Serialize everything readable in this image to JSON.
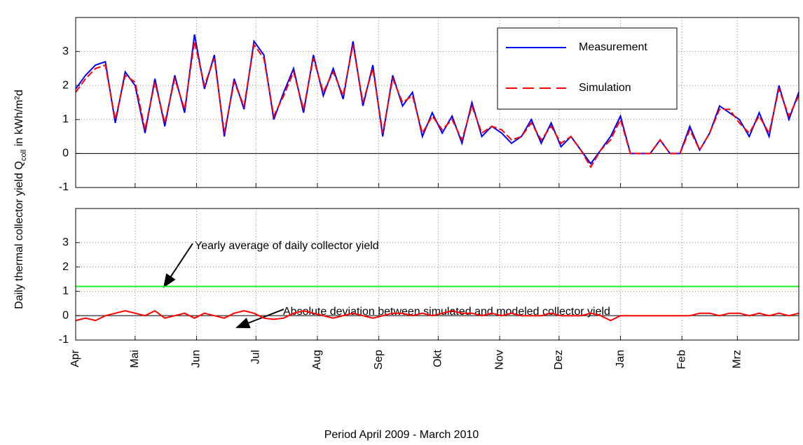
{
  "chart_data": [
    {
      "type": "line",
      "ylabel": "Daily thermal collector yield Q",
      "ylabel_sub": "coll",
      "ylabel_unit": " in kWh/m²d",
      "x": [
        0,
        5,
        10,
        15,
        20,
        25,
        30,
        35,
        40,
        45,
        50,
        55,
        60,
        65,
        70,
        75,
        80,
        85,
        90,
        95,
        100,
        105,
        110,
        115,
        120,
        125,
        130,
        135,
        140,
        145,
        150,
        155,
        160,
        165,
        170,
        175,
        180,
        185,
        190,
        195,
        200,
        205,
        210,
        215,
        220,
        225,
        230,
        235,
        240,
        245,
        250,
        255,
        260,
        265,
        270,
        275,
        280,
        285,
        290,
        295,
        300,
        305,
        310,
        315,
        320,
        325,
        330,
        335,
        340,
        345,
        350,
        355,
        360,
        365
      ],
      "series": [
        {
          "name": "Measurement",
          "color": "#0000ff",
          "values": [
            1.9,
            2.3,
            2.6,
            2.7,
            0.9,
            2.4,
            2.0,
            0.6,
            2.2,
            0.8,
            2.3,
            1.2,
            3.5,
            1.9,
            2.9,
            0.5,
            2.2,
            1.3,
            3.3,
            2.9,
            1.0,
            1.8,
            2.5,
            1.2,
            2.9,
            1.7,
            2.5,
            1.6,
            3.3,
            1.4,
            2.6,
            0.5,
            2.3,
            1.4,
            1.8,
            0.5,
            1.2,
            0.6,
            1.1,
            0.3,
            1.5,
            0.5,
            0.8,
            0.6,
            0.3,
            0.5,
            1.0,
            0.3,
            0.9,
            0.2,
            0.5,
            0.1,
            -0.3,
            0.1,
            0.5,
            1.1,
            0.0,
            0.0,
            0.0,
            0.4,
            0.0,
            0.0,
            0.8,
            0.1,
            0.6,
            1.4,
            1.2,
            1.0,
            0.5,
            1.2,
            0.5,
            2.0,
            1.0,
            1.8
          ]
        },
        {
          "name": "Simulation",
          "color": "#ff0000",
          "dashed": true,
          "values": [
            1.8,
            2.2,
            2.5,
            2.6,
            1.0,
            2.3,
            2.1,
            0.7,
            2.1,
            0.9,
            2.2,
            1.3,
            3.3,
            2.0,
            2.8,
            0.6,
            2.1,
            1.4,
            3.2,
            2.8,
            1.1,
            1.7,
            2.4,
            1.3,
            2.8,
            1.8,
            2.4,
            1.7,
            3.2,
            1.5,
            2.5,
            0.6,
            2.2,
            1.5,
            1.7,
            0.6,
            1.1,
            0.7,
            1.0,
            0.4,
            1.4,
            0.6,
            0.8,
            0.7,
            0.4,
            0.5,
            0.9,
            0.4,
            0.8,
            0.3,
            0.5,
            0.1,
            -0.4,
            0.1,
            0.4,
            1.0,
            0.0,
            0.0,
            0.0,
            0.4,
            0.0,
            0.0,
            0.7,
            0.1,
            0.6,
            1.3,
            1.3,
            0.9,
            0.6,
            1.1,
            0.6,
            1.9,
            1.1,
            1.7
          ]
        }
      ],
      "xlim": [
        0,
        365
      ],
      "ylim": [
        -1,
        4
      ],
      "yticks": [
        -1,
        0,
        1,
        2,
        3
      ],
      "xticks": [
        {
          "value": 0,
          "label": "Apr"
        },
        {
          "value": 30,
          "label": "Mai"
        },
        {
          "value": 61,
          "label": "Jun"
        },
        {
          "value": 91,
          "label": "Jul"
        },
        {
          "value": 122,
          "label": "Aug"
        },
        {
          "value": 153,
          "label": "Sep"
        },
        {
          "value": 183,
          "label": "Okt"
        },
        {
          "value": 214,
          "label": "Nov"
        },
        {
          "value": 244,
          "label": "Dez"
        },
        {
          "value": 275,
          "label": "Jan"
        },
        {
          "value": 306,
          "label": "Feb"
        },
        {
          "value": 334,
          "label": "Mrz"
        }
      ],
      "grid": true,
      "legend": "upper right"
    },
    {
      "type": "line",
      "xlabel": "Period April 2009 - March 2010",
      "x": [
        0,
        5,
        10,
        15,
        20,
        25,
        30,
        35,
        40,
        45,
        50,
        55,
        60,
        65,
        70,
        75,
        80,
        85,
        90,
        95,
        100,
        105,
        110,
        115,
        120,
        125,
        130,
        135,
        140,
        145,
        150,
        155,
        160,
        165,
        170,
        175,
        180,
        185,
        190,
        195,
        200,
        205,
        210,
        215,
        220,
        225,
        230,
        235,
        240,
        245,
        250,
        255,
        260,
        265,
        270,
        275,
        280,
        285,
        290,
        295,
        300,
        305,
        310,
        315,
        320,
        325,
        330,
        335,
        340,
        345,
        350,
        355,
        360,
        365
      ],
      "series": [
        {
          "color": "#ff0000",
          "values": [
            -0.2,
            -0.1,
            -0.2,
            0.0,
            0.1,
            0.2,
            0.1,
            0.0,
            0.2,
            -0.1,
            0.0,
            0.1,
            -0.1,
            0.1,
            0.0,
            -0.1,
            0.1,
            0.2,
            0.1,
            -0.1,
            -0.15,
            -0.1,
            0.1,
            0.2,
            0.1,
            0.0,
            -0.1,
            0.0,
            0.1,
            0.0,
            -0.1,
            0.0,
            0.1,
            0.1,
            0.0,
            0.1,
            0.0,
            0.1,
            0.2,
            0.1,
            0.1,
            0.0,
            0.1,
            0.0,
            0.1,
            0.0,
            0.0,
            0.0,
            0.1,
            0.0,
            0.0,
            0.0,
            0.1,
            0.0,
            -0.2,
            0.0,
            0.0,
            0.0,
            0.0,
            0.0,
            0.0,
            0.0,
            0.0,
            0.1,
            0.1,
            0.0,
            0.1,
            0.1,
            0.0,
            0.1,
            0.0,
            0.1,
            0.0,
            0.1
          ]
        }
      ],
      "hline": {
        "value": 1.2,
        "color": "#22ee22"
      },
      "annotations": [
        "Yearly average of daily collector yield",
        "Absolute deviation between simulated and modeled collector yield"
      ],
      "xlim": [
        0,
        365
      ],
      "ylim": [
        -1,
        4.4
      ],
      "yticks": [
        -1,
        0,
        1,
        2,
        3
      ],
      "xticks": [
        {
          "value": 0,
          "label": "Apr"
        },
        {
          "value": 30,
          "label": "Mai"
        },
        {
          "value": 61,
          "label": "Jun"
        },
        {
          "value": 91,
          "label": "Jul"
        },
        {
          "value": 122,
          "label": "Aug"
        },
        {
          "value": 153,
          "label": "Sep"
        },
        {
          "value": 183,
          "label": "Okt"
        },
        {
          "value": 214,
          "label": "Nov"
        },
        {
          "value": 244,
          "label": "Dez"
        },
        {
          "value": 275,
          "label": "Jan"
        },
        {
          "value": 306,
          "label": "Feb"
        },
        {
          "value": 334,
          "label": "Mrz"
        }
      ],
      "grid": true
    }
  ]
}
